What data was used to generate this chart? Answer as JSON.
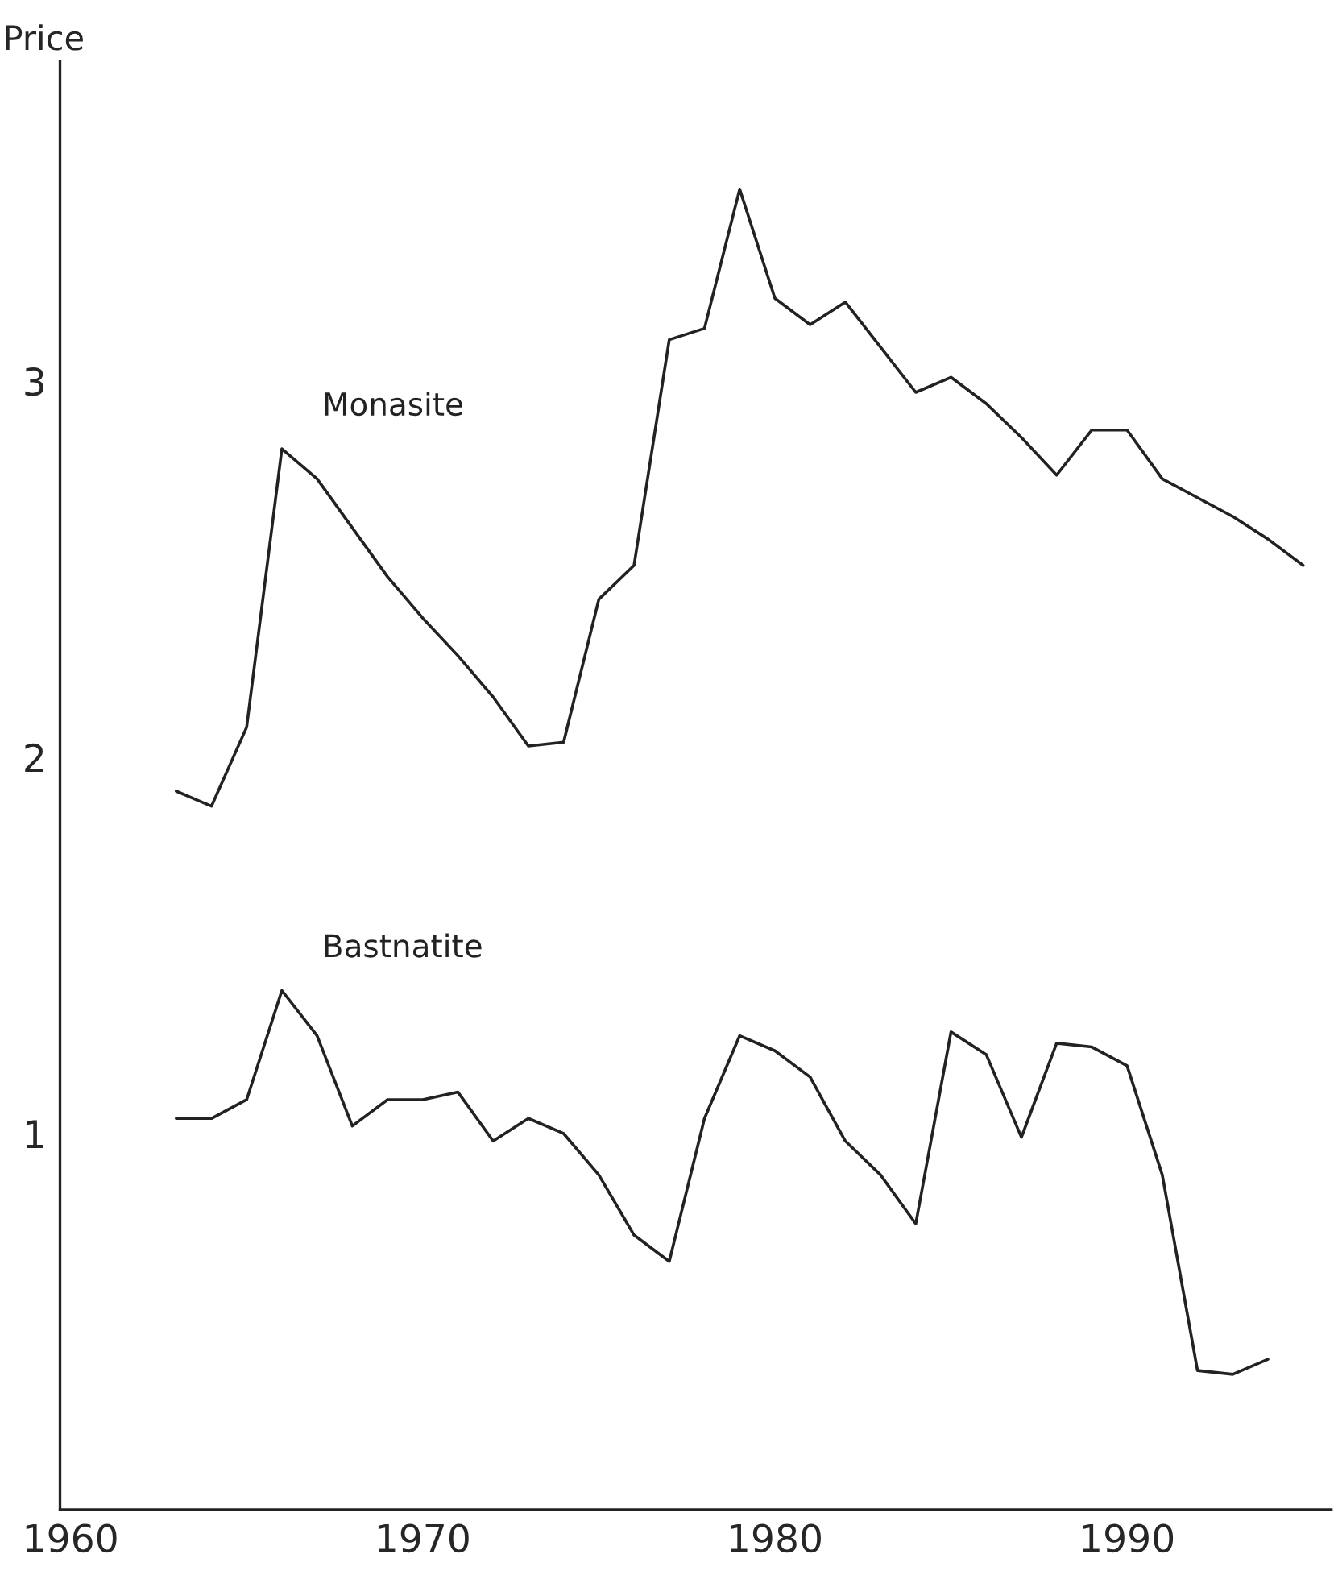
{
  "chart_data": {
    "type": "line",
    "ylabel": "Price",
    "x": [
      1963,
      1964,
      1965,
      1966,
      1967,
      1968,
      1969,
      1970,
      1971,
      1972,
      1973,
      1974,
      1975,
      1976,
      1977,
      1978,
      1979,
      1980,
      1981,
      1982,
      1983,
      1984,
      1985,
      1986,
      1987,
      1988,
      1989,
      1990,
      1991,
      1992,
      1993,
      1994,
      1995
    ],
    "series": [
      {
        "name": "Monasite",
        "color": "#222222",
        "values": [
          1.91,
          1.87,
          2.08,
          2.82,
          2.74,
          2.61,
          2.48,
          2.37,
          2.27,
          2.16,
          2.03,
          2.04,
          2.42,
          2.51,
          3.11,
          3.14,
          3.51,
          3.22,
          3.15,
          3.21,
          3.09,
          2.97,
          3.01,
          2.94,
          2.85,
          2.75,
          2.87,
          2.87,
          2.74,
          2.69,
          2.64,
          2.58,
          2.51
        ]
      },
      {
        "name": "Bastnatite",
        "color": "#222222",
        "values": [
          1.04,
          1.04,
          1.09,
          1.38,
          1.26,
          1.02,
          1.09,
          1.09,
          1.11,
          0.98,
          1.04,
          1.0,
          0.89,
          0.73,
          0.66,
          1.04,
          1.26,
          1.22,
          1.15,
          0.98,
          0.89,
          0.76,
          1.27,
          1.21,
          0.99,
          1.24,
          1.23,
          1.18,
          0.89,
          0.37,
          0.36,
          0.4,
          null
        ]
      }
    ],
    "xlim": [
      1959.7,
      1995.8
    ],
    "ylim": [
      0,
      3.85
    ],
    "xticks": [
      1960,
      1970,
      1980,
      1990
    ],
    "yticks": [
      1,
      2,
      3
    ],
    "grid": false,
    "legend": false,
    "marker": "none",
    "line_style": "solid"
  }
}
